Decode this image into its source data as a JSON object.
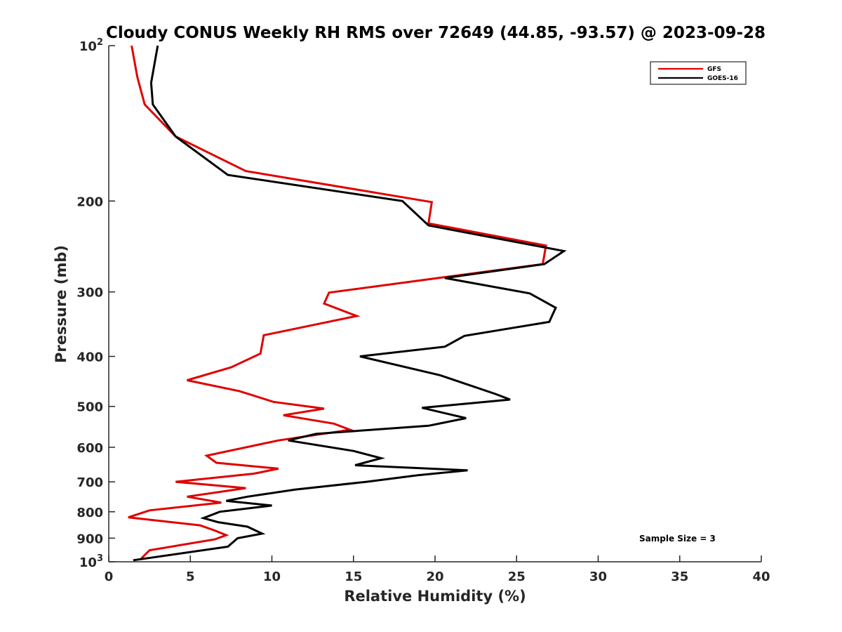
{
  "chart_data": {
    "type": "line",
    "title": "Cloudy CONUS Weekly RH RMS over 72649 (44.85, -93.57) @ 2023-09-28",
    "xlabel": "Relative Humidity (%)",
    "ylabel": "Pressure (mb)",
    "xlim": [
      0,
      40
    ],
    "ylim": [
      100,
      1000
    ],
    "y_scale": "log",
    "y_reversed": true,
    "grid": false,
    "legend_position": "top-right",
    "x_ticks": [
      0,
      5,
      10,
      15,
      20,
      25,
      30,
      35,
      40
    ],
    "x_tick_labels": [
      "0",
      "5",
      "10",
      "15",
      "20",
      "25",
      "30",
      "35",
      "40"
    ],
    "y_ticks": [
      100,
      200,
      300,
      400,
      500,
      600,
      700,
      800,
      900,
      1000
    ],
    "y_tick_labels": [
      {
        "base": "10",
        "exp": "2"
      },
      {
        "base": "200",
        "exp": ""
      },
      {
        "base": "300",
        "exp": ""
      },
      {
        "base": "400",
        "exp": ""
      },
      {
        "base": "500",
        "exp": ""
      },
      {
        "base": "600",
        "exp": ""
      },
      {
        "base": "700",
        "exp": ""
      },
      {
        "base": "800",
        "exp": ""
      },
      {
        "base": "900",
        "exp": ""
      },
      {
        "base": "10",
        "exp": "3"
      }
    ],
    "annotation": "Sample Size = 3",
    "series": [
      {
        "name": "GFS",
        "color": "#e00000",
        "points": [
          [
            1.4,
            100
          ],
          [
            1.75,
            115
          ],
          [
            2.2,
            130
          ],
          [
            4.1,
            150
          ],
          [
            8.4,
            175
          ],
          [
            19.8,
            201
          ],
          [
            19.6,
            221
          ],
          [
            26.8,
            244
          ],
          [
            26.6,
            265
          ],
          [
            20.2,
            282
          ],
          [
            13.5,
            301
          ],
          [
            13.2,
            316
          ],
          [
            15.2,
            334
          ],
          [
            9.5,
            364
          ],
          [
            9.3,
            395
          ],
          [
            7.5,
            420
          ],
          [
            4.8,
            445
          ],
          [
            8.0,
            467
          ],
          [
            10.1,
            490
          ],
          [
            13.2,
            505
          ],
          [
            10.7,
            520
          ],
          [
            13.8,
            540
          ],
          [
            14.8,
            555
          ],
          [
            10.4,
            582
          ],
          [
            6.0,
            623
          ],
          [
            6.6,
            643
          ],
          [
            10.4,
            660
          ],
          [
            8.9,
            675
          ],
          [
            4.1,
            700
          ],
          [
            8.4,
            720
          ],
          [
            4.8,
            748
          ],
          [
            6.9,
            768
          ],
          [
            2.5,
            795
          ],
          [
            1.2,
            820
          ],
          [
            5.6,
            850
          ],
          [
            6.5,
            870
          ],
          [
            7.2,
            888
          ],
          [
            6.5,
            905
          ],
          [
            2.5,
            950
          ],
          [
            2.0,
            985
          ]
        ]
      },
      {
        "name": "GOES-16",
        "color": "#000000",
        "points": [
          [
            3.0,
            100
          ],
          [
            2.6,
            118
          ],
          [
            2.7,
            130
          ],
          [
            4.1,
            150
          ],
          [
            7.3,
            178
          ],
          [
            18.0,
            200
          ],
          [
            19.6,
            223
          ],
          [
            27.9,
            250
          ],
          [
            26.7,
            265
          ],
          [
            20.6,
            282
          ],
          [
            25.8,
            302
          ],
          [
            27.4,
            322
          ],
          [
            27.0,
            343
          ],
          [
            21.8,
            365
          ],
          [
            20.6,
            383
          ],
          [
            15.4,
            400
          ],
          [
            20.3,
            435
          ],
          [
            23.7,
            473
          ],
          [
            24.6,
            485
          ],
          [
            19.2,
            503
          ],
          [
            21.9,
            527
          ],
          [
            19.6,
            545
          ],
          [
            12.7,
            565
          ],
          [
            11.0,
            582
          ],
          [
            15.0,
            610
          ],
          [
            16.7,
            630
          ],
          [
            15.1,
            650
          ],
          [
            22.0,
            665
          ],
          [
            18.9,
            680
          ],
          [
            15.8,
            700
          ],
          [
            11.4,
            725
          ],
          [
            8.5,
            748
          ],
          [
            7.2,
            762
          ],
          [
            10.0,
            778
          ],
          [
            6.8,
            800
          ],
          [
            5.8,
            823
          ],
          [
            6.7,
            838
          ],
          [
            8.5,
            855
          ],
          [
            9.4,
            882
          ],
          [
            7.9,
            900
          ],
          [
            7.3,
            935
          ],
          [
            1.5,
            993
          ]
        ]
      }
    ]
  }
}
